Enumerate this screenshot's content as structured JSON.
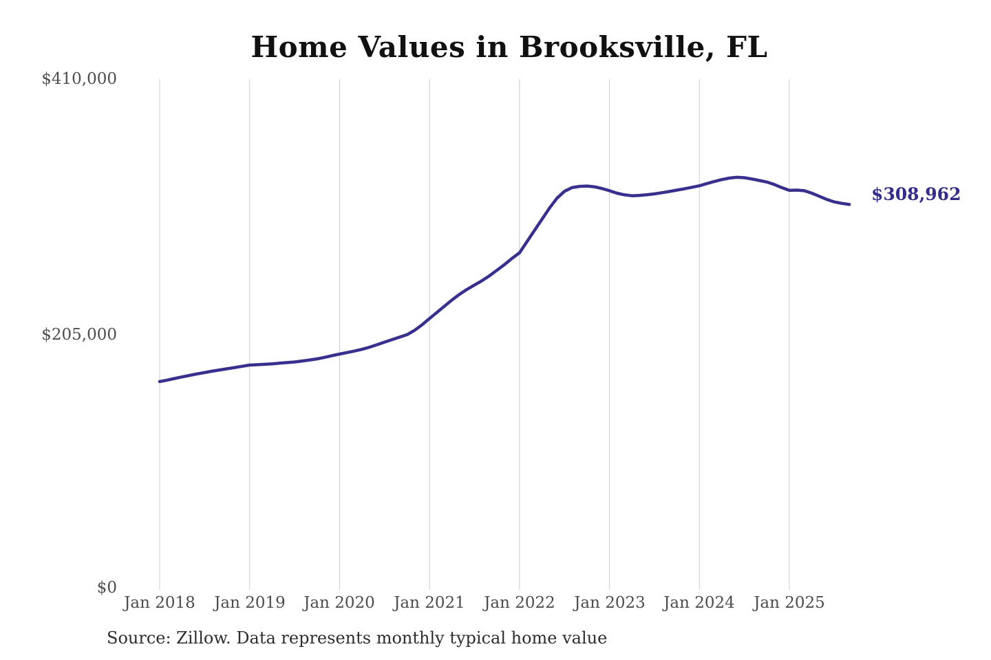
{
  "chart_data": {
    "type": "line",
    "title": "Home Values in Brooksville, FL",
    "series_name": "Monthly typical home value",
    "x_start": "2018-01",
    "x_end": "2025-09",
    "x_tick_labels": [
      "Jan 2018",
      "Jan 2019",
      "Jan 2020",
      "Jan 2021",
      "Jan 2022",
      "Jan 2023",
      "Jan 2024",
      "Jan 2025"
    ],
    "y_tick_labels": [
      "$410,000",
      "$205,000",
      "$0"
    ],
    "y_tick_values": [
      410000,
      205000,
      0
    ],
    "ylim": [
      0,
      410000
    ],
    "grid": "vertical-only",
    "legend": "none",
    "line_color": "#38308f",
    "grid_color": "#cccccc",
    "end_label": "$308,962",
    "end_value": 308962,
    "values_monthly": [
      166200,
      167400,
      168700,
      170000,
      171200,
      172400,
      173500,
      174600,
      175600,
      176500,
      177500,
      178500,
      179500,
      179800,
      180100,
      180500,
      181000,
      181500,
      182000,
      182800,
      183600,
      184500,
      185700,
      187100,
      188400,
      189600,
      190800,
      192200,
      193900,
      195900,
      198000,
      200000,
      202000,
      204000,
      207500,
      212000,
      217000,
      222000,
      227000,
      232000,
      236500,
      240500,
      244000,
      247500,
      251500,
      256000,
      260500,
      265500,
      270000,
      279000,
      288000,
      297000,
      306000,
      314000,
      319500,
      322500,
      323500,
      323800,
      323200,
      321800,
      320000,
      318000,
      316700,
      316000,
      316200,
      316800,
      317500,
      318400,
      319400,
      320500,
      321600,
      322800,
      324000,
      325800,
      327500,
      329000,
      330200,
      330800,
      330500,
      329500,
      328300,
      327000,
      325000,
      322500,
      320300,
      320500,
      320000,
      318000,
      315500,
      313000,
      311000,
      309800,
      308962
    ],
    "source_note": "Source: Zillow. Data represents monthly typical home value"
  }
}
